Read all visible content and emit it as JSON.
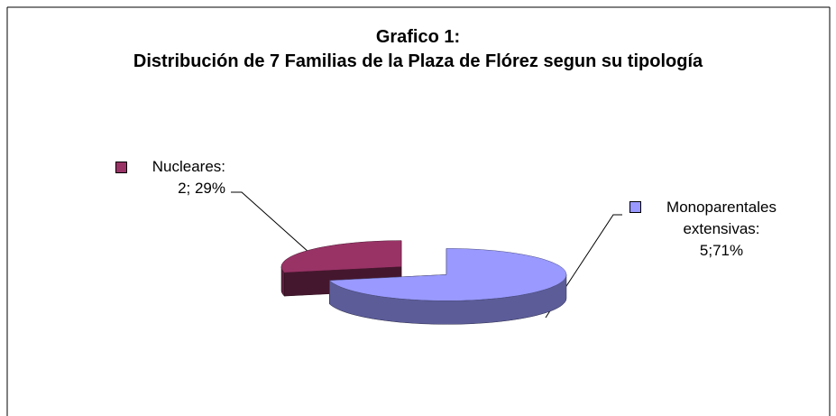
{
  "chart_data": {
    "type": "pie",
    "title": "Grafico 1:",
    "subtitle": "Distribución de 7 Familias de la Plaza de Flórez segun su tipología",
    "categories": [
      "Nucleares:",
      "Monoparentales extensivas:"
    ],
    "values": [
      2,
      5
    ],
    "value_labels": [
      "2; 29%",
      "5;71%"
    ],
    "colors": [
      "#993366",
      "#9999ff"
    ]
  }
}
